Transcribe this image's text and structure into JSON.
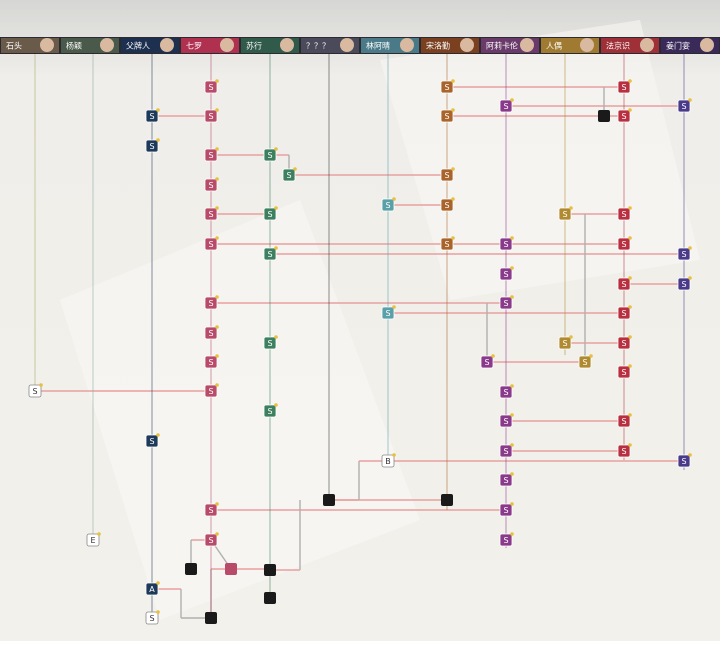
{
  "header": {
    "tabs": [
      "石头",
      "杨颖",
      "父牌人",
      "七罗",
      "苏行",
      "？？？",
      "林阿晴",
      "宋洛勤",
      "阿莉卡伦",
      "人偶",
      "法京识",
      "姜门宴"
    ]
  },
  "nodes": [
    {
      "label": "S"
    },
    {
      "label": "S"
    },
    {
      "label": "S"
    },
    {
      "label": "S"
    },
    {
      "label": "S"
    },
    {
      "label": "S"
    },
    {
      "label": "S"
    },
    {
      "label": "S"
    },
    {
      "label": "S"
    },
    {
      "label": "S"
    },
    {
      "label": "S"
    },
    {
      "label": "S"
    },
    {
      "label": "S"
    },
    {
      "label": "S"
    },
    {
      "label": "S"
    },
    {
      "label": "A"
    },
    {
      "label": "S"
    },
    {
      "label": "S"
    },
    {
      "label": "S"
    },
    {
      "label": "S"
    },
    {
      "label": "S"
    },
    {
      "label": "S"
    },
    {
      "label": "S"
    },
    {
      "label": "S"
    },
    {
      "label": "S"
    },
    {
      "label": "S"
    },
    {
      "label": "S"
    },
    {
      "label": "S"
    },
    {
      "label": "S"
    },
    {
      "label": "S"
    },
    {
      "label": "B"
    },
    {
      "label": "S"
    },
    {
      "label": "S"
    },
    {
      "label": "S"
    },
    {
      "label": "S"
    },
    {
      "label": "S"
    },
    {
      "label": "S"
    },
    {
      "label": "S"
    },
    {
      "label": "S"
    },
    {
      "label": "S"
    },
    {
      "label": "S"
    },
    {
      "label": "S"
    },
    {
      "label": "S"
    },
    {
      "label": "S"
    },
    {
      "label": "S"
    },
    {
      "label": "S"
    },
    {
      "label": "S"
    },
    {
      "label": "S"
    },
    {
      "label": "S"
    },
    {
      "label": "S"
    },
    {
      "label": "S"
    },
    {
      "label": "S"
    },
    {
      "label": "S"
    },
    {
      "label": "S"
    },
    {
      "label": "S"
    },
    {
      "label": "S"
    },
    {
      "label": "S"
    },
    {
      "label": "S"
    },
    {
      "label": "S"
    },
    {
      "label": "S"
    },
    {
      "label": "E"
    }
  ]
}
